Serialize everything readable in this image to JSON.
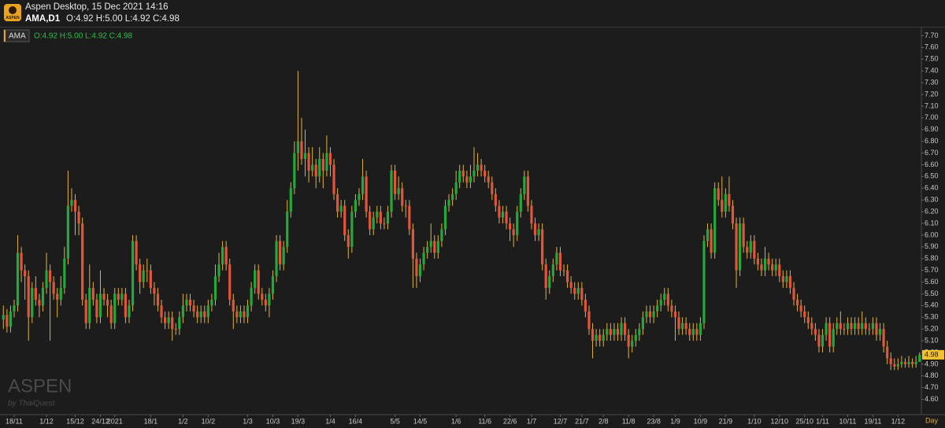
{
  "header": {
    "logo": "ASPEN",
    "title": "Aspen Desktop, 15 Dec 2021 14:16",
    "symbol": "AMA,D1",
    "ohlc": "O:4.92 H:5.00 L:4.92 C:4.98"
  },
  "chart_data": {
    "type": "candlestick",
    "symbol": "AMA",
    "legend_ohlc": "O:4.92 H:5.00 L:4.92 C:4.98",
    "watermark": "ASPEN",
    "watermark_sub": "by ThaiQuest",
    "x_axis_unit": "Day",
    "up_color": "#25a83a",
    "down_color": "#e2553b",
    "wick_color": "#e0b243",
    "grid": false,
    "categories": [
      null,
      null,
      null,
      "18/11",
      null,
      null,
      null,
      null,
      null,
      null,
      null,
      null,
      "1/12",
      null,
      null,
      null,
      null,
      null,
      null,
      null,
      "15/12",
      null,
      null,
      null,
      null,
      null,
      null,
      "24/12",
      null,
      null,
      null,
      "2021",
      null,
      null,
      null,
      null,
      null,
      null,
      null,
      null,
      null,
      "18/1",
      null,
      null,
      null,
      null,
      null,
      null,
      null,
      null,
      "1/2",
      null,
      null,
      null,
      null,
      null,
      null,
      "10/2",
      null,
      null,
      null,
      null,
      null,
      null,
      null,
      null,
      null,
      null,
      "1/3",
      null,
      null,
      null,
      null,
      null,
      null,
      "10/3",
      null,
      null,
      null,
      null,
      null,
      null,
      "19/3",
      null,
      null,
      null,
      null,
      null,
      null,
      null,
      null,
      "1/4",
      null,
      null,
      null,
      null,
      null,
      null,
      "16/4",
      null,
      null,
      null,
      null,
      null,
      null,
      null,
      null,
      null,
      null,
      "5/5",
      null,
      null,
      null,
      null,
      null,
      null,
      "14/5",
      null,
      null,
      null,
      null,
      null,
      null,
      null,
      null,
      null,
      "1/6",
      null,
      null,
      null,
      null,
      null,
      null,
      null,
      "11/6",
      null,
      null,
      null,
      null,
      null,
      null,
      "22/6",
      null,
      null,
      null,
      null,
      null,
      "1/7",
      null,
      null,
      null,
      null,
      null,
      null,
      null,
      "12/7",
      null,
      null,
      null,
      null,
      null,
      "21/7",
      null,
      null,
      null,
      null,
      null,
      "2/8",
      null,
      null,
      null,
      null,
      null,
      null,
      "11/8",
      null,
      null,
      null,
      null,
      null,
      null,
      "23/8",
      null,
      null,
      null,
      null,
      null,
      "1/9",
      null,
      null,
      null,
      null,
      null,
      null,
      "10/9",
      null,
      null,
      null,
      null,
      null,
      null,
      "21/9",
      null,
      null,
      null,
      null,
      null,
      null,
      null,
      "1/10",
      null,
      null,
      null,
      null,
      null,
      null,
      "12/10",
      null,
      null,
      null,
      null,
      null,
      null,
      "25/10",
      null,
      null,
      null,
      null,
      "1/11",
      null,
      null,
      null,
      null,
      null,
      null,
      "10/11",
      null,
      null,
      null,
      null,
      null,
      null,
      "19/11",
      null,
      null,
      null,
      null,
      null,
      null,
      "1/12",
      null,
      null,
      null,
      null,
      null,
      null
    ],
    "open": [
      5.28,
      5.32,
      5.22,
      5.35,
      5.4,
      5.85,
      5.7,
      5.65,
      5.3,
      5.55,
      5.45,
      5.4,
      5.55,
      5.7,
      5.6,
      5.5,
      5.45,
      5.55,
      5.8,
      6.25,
      6.3,
      6.2,
      6.1,
      5.45,
      5.25,
      5.55,
      5.45,
      5.3,
      5.5,
      5.45,
      5.4,
      5.25,
      5.5,
      5.45,
      5.5,
      5.3,
      5.4,
      5.95,
      5.75,
      5.6,
      5.7,
      5.7,
      5.55,
      5.5,
      5.4,
      5.3,
      5.25,
      5.3,
      5.2,
      5.2,
      5.3,
      5.4,
      5.45,
      5.4,
      5.35,
      5.3,
      5.35,
      5.3,
      5.4,
      5.45,
      5.65,
      5.75,
      5.9,
      5.75,
      5.45,
      5.35,
      5.3,
      5.35,
      5.3,
      5.4,
      5.55,
      5.7,
      5.5,
      5.45,
      5.4,
      5.5,
      5.65,
      5.95,
      5.75,
      5.9,
      6.2,
      6.4,
      6.7,
      6.8,
      6.65,
      6.7,
      6.55,
      6.6,
      6.5,
      6.65,
      6.55,
      6.7,
      6.6,
      6.35,
      6.2,
      6.25,
      6.0,
      5.9,
      6.2,
      6.3,
      6.35,
      6.5,
      6.2,
      6.05,
      6.15,
      6.2,
      6.1,
      6.1,
      6.2,
      6.55,
      6.35,
      6.4,
      6.25,
      6.25,
      6.05,
      5.8,
      5.65,
      5.75,
      5.85,
      5.9,
      5.95,
      5.85,
      5.95,
      6.05,
      6.25,
      6.3,
      6.35,
      6.45,
      6.55,
      6.5,
      6.45,
      6.5,
      6.55,
      6.6,
      6.55,
      6.5,
      6.45,
      6.35,
      6.25,
      6.15,
      6.2,
      6.1,
      6.05,
      6.0,
      6.2,
      6.35,
      6.5,
      6.25,
      6.1,
      6.0,
      6.05,
      5.75,
      5.55,
      5.65,
      5.75,
      5.85,
      5.7,
      5.7,
      5.6,
      5.55,
      5.5,
      5.55,
      5.45,
      5.35,
      5.2,
      5.1,
      5.15,
      5.1,
      5.15,
      5.2,
      5.15,
      5.2,
      5.15,
      5.25,
      5.15,
      5.05,
      5.1,
      5.15,
      5.2,
      5.3,
      5.35,
      5.3,
      5.35,
      5.4,
      5.45,
      5.5,
      5.4,
      5.35,
      5.3,
      5.2,
      5.25,
      5.2,
      5.15,
      5.2,
      5.15,
      5.25,
      5.95,
      6.05,
      5.85,
      6.4,
      6.3,
      6.2,
      6.35,
      6.25,
      6.1,
      5.7,
      6.1,
      5.9,
      5.85,
      5.95,
      5.8,
      5.75,
      5.7,
      5.8,
      5.75,
      5.7,
      5.75,
      5.65,
      5.6,
      5.65,
      5.55,
      5.45,
      5.4,
      5.35,
      5.3,
      5.25,
      5.2,
      5.15,
      5.05,
      5.15,
      5.25,
      5.05,
      5.2,
      5.25,
      5.2,
      5.2,
      5.25,
      5.2,
      5.25,
      5.2,
      5.25,
      5.2,
      5.2,
      5.25,
      5.15,
      5.2,
      5.05,
      4.95,
      4.9,
      4.88,
      4.9,
      4.92,
      4.9,
      4.92,
      4.9,
      4.92
    ],
    "high": [
      5.4,
      5.37,
      5.4,
      5.45,
      6.0,
      5.9,
      5.75,
      5.7,
      5.6,
      5.65,
      5.5,
      5.6,
      5.85,
      5.75,
      5.65,
      5.55,
      5.65,
      5.9,
      6.55,
      6.4,
      6.35,
      6.25,
      6.15,
      5.5,
      5.75,
      5.6,
      5.5,
      5.7,
      5.55,
      5.5,
      5.45,
      5.55,
      5.55,
      5.55,
      5.55,
      5.45,
      6.0,
      6.0,
      5.8,
      5.75,
      5.8,
      5.75,
      5.6,
      5.55,
      5.45,
      5.35,
      5.35,
      5.35,
      5.25,
      5.35,
      5.5,
      5.5,
      5.5,
      5.45,
      5.4,
      5.4,
      5.4,
      5.45,
      5.5,
      5.75,
      5.85,
      5.95,
      5.95,
      5.8,
      5.5,
      5.4,
      5.4,
      5.4,
      5.45,
      5.6,
      5.75,
      5.75,
      5.55,
      5.5,
      5.55,
      5.7,
      6.0,
      6.0,
      5.95,
      6.3,
      6.45,
      6.8,
      7.4,
      7.0,
      6.9,
      6.75,
      6.75,
      6.65,
      6.75,
      6.7,
      6.85,
      6.75,
      6.65,
      6.4,
      6.3,
      6.3,
      6.05,
      6.25,
      6.35,
      6.4,
      6.65,
      6.55,
      6.25,
      6.2,
      6.25,
      6.25,
      6.15,
      6.25,
      6.6,
      6.6,
      6.5,
      6.45,
      6.3,
      6.3,
      6.1,
      5.85,
      5.8,
      5.9,
      5.95,
      6.1,
      6.0,
      6.0,
      6.1,
      6.3,
      6.35,
      6.4,
      6.55,
      6.6,
      6.6,
      6.55,
      6.6,
      6.75,
      6.7,
      6.65,
      6.6,
      6.55,
      6.5,
      6.4,
      6.3,
      6.25,
      6.25,
      6.15,
      6.1,
      6.25,
      6.4,
      6.55,
      6.55,
      6.3,
      6.15,
      6.1,
      6.1,
      5.8,
      5.7,
      5.8,
      5.9,
      5.9,
      5.75,
      5.75,
      5.65,
      5.6,
      5.6,
      5.6,
      5.5,
      5.4,
      5.25,
      5.2,
      5.2,
      5.2,
      5.25,
      5.25,
      5.25,
      5.25,
      5.3,
      5.3,
      5.2,
      5.15,
      5.2,
      5.25,
      5.35,
      5.4,
      5.4,
      5.4,
      5.45,
      5.5,
      5.55,
      5.55,
      5.45,
      5.4,
      5.35,
      5.3,
      5.3,
      5.25,
      5.25,
      5.25,
      5.3,
      6.0,
      6.1,
      6.1,
      6.45,
      6.45,
      6.5,
      6.4,
      6.5,
      6.3,
      6.15,
      6.15,
      6.15,
      5.95,
      6.0,
      6.0,
      5.85,
      5.8,
      5.9,
      5.85,
      5.8,
      5.8,
      5.8,
      5.7,
      5.7,
      5.7,
      5.6,
      5.5,
      5.45,
      5.4,
      5.35,
      5.3,
      5.25,
      5.2,
      5.2,
      5.3,
      5.3,
      5.25,
      5.3,
      5.35,
      5.25,
      5.3,
      5.3,
      5.3,
      5.3,
      5.35,
      5.3,
      5.25,
      5.3,
      5.3,
      5.25,
      5.25,
      5.1,
      5.0,
      4.95,
      4.95,
      4.97,
      4.95,
      4.97,
      4.95,
      4.97,
      5.0
    ],
    "low": [
      5.2,
      5.17,
      5.17,
      5.3,
      5.35,
      5.6,
      5.45,
      5.1,
      5.25,
      5.4,
      5.3,
      5.35,
      5.5,
      5.1,
      5.45,
      5.3,
      5.4,
      5.5,
      5.75,
      6.2,
      6.0,
      6.0,
      5.4,
      5.2,
      5.2,
      5.4,
      5.25,
      5.25,
      5.4,
      5.3,
      5.2,
      5.2,
      5.4,
      5.4,
      5.25,
      5.25,
      5.35,
      5.7,
      5.5,
      5.55,
      5.6,
      5.5,
      5.4,
      5.35,
      5.25,
      5.2,
      5.2,
      5.1,
      5.15,
      5.15,
      5.25,
      5.35,
      5.35,
      5.3,
      5.25,
      5.25,
      5.25,
      5.25,
      5.35,
      5.4,
      5.6,
      5.7,
      5.7,
      5.4,
      5.2,
      5.25,
      5.25,
      5.25,
      5.25,
      5.35,
      5.5,
      5.45,
      5.4,
      5.35,
      5.3,
      5.45,
      5.6,
      5.7,
      5.7,
      5.85,
      6.15,
      6.35,
      6.55,
      6.6,
      6.5,
      6.45,
      6.5,
      6.4,
      6.45,
      6.4,
      6.5,
      6.5,
      6.3,
      6.15,
      6.15,
      5.95,
      5.8,
      5.85,
      6.15,
      6.25,
      6.3,
      6.15,
      6.0,
      6.0,
      6.1,
      6.05,
      6.05,
      6.05,
      6.15,
      6.3,
      6.3,
      6.2,
      6.15,
      6.0,
      5.55,
      5.55,
      5.6,
      5.7,
      5.8,
      5.85,
      5.8,
      5.8,
      5.9,
      6.0,
      6.2,
      6.25,
      6.3,
      6.4,
      6.45,
      6.4,
      6.4,
      6.45,
      6.5,
      6.5,
      6.45,
      6.4,
      6.3,
      6.2,
      6.1,
      6.1,
      6.05,
      5.95,
      5.9,
      5.95,
      6.15,
      6.3,
      6.2,
      6.05,
      5.95,
      5.95,
      5.7,
      5.45,
      5.5,
      5.6,
      5.7,
      5.65,
      5.65,
      5.55,
      5.5,
      5.45,
      5.45,
      5.4,
      5.3,
      5.15,
      4.95,
      5.05,
      5.05,
      5.05,
      5.1,
      5.1,
      5.1,
      5.1,
      5.1,
      5.1,
      4.95,
      5.0,
      5.05,
      5.1,
      5.15,
      5.25,
      5.25,
      5.25,
      5.3,
      5.35,
      5.4,
      5.35,
      5.3,
      5.1,
      5.15,
      5.15,
      5.15,
      5.1,
      5.1,
      5.1,
      5.1,
      5.2,
      5.9,
      5.8,
      5.8,
      6.25,
      6.15,
      6.15,
      6.2,
      6.05,
      5.55,
      5.65,
      5.85,
      5.8,
      5.8,
      5.75,
      5.7,
      5.65,
      5.65,
      5.7,
      5.65,
      5.65,
      5.6,
      5.55,
      5.55,
      5.5,
      5.4,
      5.35,
      5.3,
      5.25,
      5.2,
      5.15,
      5.1,
      5.0,
      5.0,
      5.1,
      5.0,
      5.0,
      5.15,
      5.15,
      5.15,
      5.15,
      5.15,
      5.15,
      5.15,
      5.15,
      5.15,
      5.15,
      5.15,
      5.1,
      5.1,
      5.0,
      4.9,
      4.85,
      4.85,
      4.85,
      4.87,
      4.87,
      4.87,
      4.87,
      4.87,
      4.92
    ],
    "close": [
      5.32,
      5.22,
      5.35,
      5.4,
      5.85,
      5.7,
      5.65,
      5.3,
      5.55,
      5.45,
      5.4,
      5.55,
      5.7,
      5.6,
      5.5,
      5.45,
      5.55,
      5.8,
      6.25,
      6.3,
      6.2,
      6.1,
      5.45,
      5.25,
      5.55,
      5.45,
      5.3,
      5.5,
      5.45,
      5.4,
      5.25,
      5.5,
      5.45,
      5.5,
      5.3,
      5.4,
      5.95,
      5.75,
      5.6,
      5.7,
      5.7,
      5.55,
      5.5,
      5.4,
      5.3,
      5.25,
      5.3,
      5.2,
      5.2,
      5.3,
      5.4,
      5.45,
      5.4,
      5.35,
      5.3,
      5.35,
      5.3,
      5.4,
      5.45,
      5.65,
      5.75,
      5.9,
      5.75,
      5.45,
      5.35,
      5.3,
      5.35,
      5.3,
      5.4,
      5.55,
      5.7,
      5.5,
      5.45,
      5.4,
      5.5,
      5.65,
      5.95,
      5.75,
      5.9,
      6.2,
      6.4,
      6.7,
      6.8,
      6.65,
      6.7,
      6.55,
      6.6,
      6.5,
      6.65,
      6.55,
      6.7,
      6.6,
      6.35,
      6.2,
      6.25,
      6.0,
      5.9,
      6.2,
      6.3,
      6.35,
      6.5,
      6.2,
      6.05,
      6.15,
      6.2,
      6.1,
      6.1,
      6.2,
      6.55,
      6.35,
      6.4,
      6.25,
      6.25,
      6.05,
      5.8,
      5.65,
      5.75,
      5.85,
      5.9,
      5.95,
      5.85,
      5.95,
      6.05,
      6.25,
      6.3,
      6.35,
      6.45,
      6.55,
      6.5,
      6.45,
      6.5,
      6.55,
      6.6,
      6.55,
      6.5,
      6.45,
      6.35,
      6.25,
      6.15,
      6.2,
      6.1,
      6.05,
      6.0,
      6.2,
      6.35,
      6.5,
      6.25,
      6.1,
      6.0,
      6.05,
      5.75,
      5.55,
      5.65,
      5.75,
      5.85,
      5.7,
      5.7,
      5.6,
      5.55,
      5.5,
      5.55,
      5.45,
      5.35,
      5.2,
      5.1,
      5.15,
      5.1,
      5.15,
      5.2,
      5.15,
      5.2,
      5.15,
      5.25,
      5.15,
      5.05,
      5.1,
      5.15,
      5.2,
      5.3,
      5.35,
      5.3,
      5.35,
      5.4,
      5.45,
      5.5,
      5.4,
      5.35,
      5.3,
      5.2,
      5.25,
      5.2,
      5.15,
      5.2,
      5.15,
      5.25,
      5.95,
      6.05,
      5.85,
      6.4,
      6.3,
      6.2,
      6.35,
      6.25,
      6.1,
      5.7,
      6.1,
      5.9,
      5.85,
      5.95,
      5.8,
      5.75,
      5.7,
      5.8,
      5.75,
      5.7,
      5.75,
      5.65,
      5.6,
      5.65,
      5.55,
      5.45,
      5.4,
      5.35,
      5.3,
      5.25,
      5.2,
      5.15,
      5.05,
      5.15,
      5.25,
      5.05,
      5.2,
      5.25,
      5.2,
      5.2,
      5.25,
      5.2,
      5.25,
      5.2,
      5.25,
      5.2,
      5.2,
      5.25,
      5.15,
      5.2,
      5.05,
      4.95,
      4.9,
      4.88,
      4.9,
      4.92,
      4.9,
      4.92,
      4.9,
      4.92,
      4.98
    ],
    "ylim": [
      4.47,
      7.77
    ],
    "yticks": [
      {
        "value": 4.6,
        "label": "4.60"
      },
      {
        "value": 4.7,
        "label": "4.70"
      },
      {
        "value": 4.8,
        "label": "4.80"
      },
      {
        "value": 4.9,
        "label": "4.90"
      },
      {
        "value": 5.0,
        "label": "5.00"
      },
      {
        "value": 5.1,
        "label": "5.10"
      },
      {
        "value": 5.2,
        "label": "5.20"
      },
      {
        "value": 5.3,
        "label": "5.30"
      },
      {
        "value": 5.4,
        "label": "5.40"
      },
      {
        "value": 5.5,
        "label": "5.50"
      },
      {
        "value": 5.6,
        "label": "5.60"
      },
      {
        "value": 5.7,
        "label": "5.70"
      },
      {
        "value": 5.8,
        "label": "5.80"
      },
      {
        "value": 5.9,
        "label": "5.90"
      },
      {
        "value": 6.0,
        "label": "6.00"
      },
      {
        "value": 6.1,
        "label": "6.10"
      },
      {
        "value": 6.2,
        "label": "6.20"
      },
      {
        "value": 6.3,
        "label": "6.30"
      },
      {
        "value": 6.4,
        "label": "6.40"
      },
      {
        "value": 6.5,
        "label": "6.50"
      },
      {
        "value": 6.6,
        "label": "6.60"
      },
      {
        "value": 6.7,
        "label": "6.70"
      },
      {
        "value": 6.8,
        "label": "6.80"
      },
      {
        "value": 6.9,
        "label": "6.90"
      },
      {
        "value": 7.0,
        "label": "7.00"
      },
      {
        "value": 7.1,
        "label": "7.10"
      },
      {
        "value": 7.2,
        "label": "7.20"
      },
      {
        "value": 7.3,
        "label": "7.30"
      },
      {
        "value": 7.4,
        "label": "7.40"
      },
      {
        "value": 7.5,
        "label": "7.50"
      },
      {
        "value": 7.6,
        "label": "7.60"
      },
      {
        "value": 7.7,
        "label": "7.70"
      }
    ],
    "last_price": {
      "value": 4.98,
      "label": "4.98"
    }
  }
}
